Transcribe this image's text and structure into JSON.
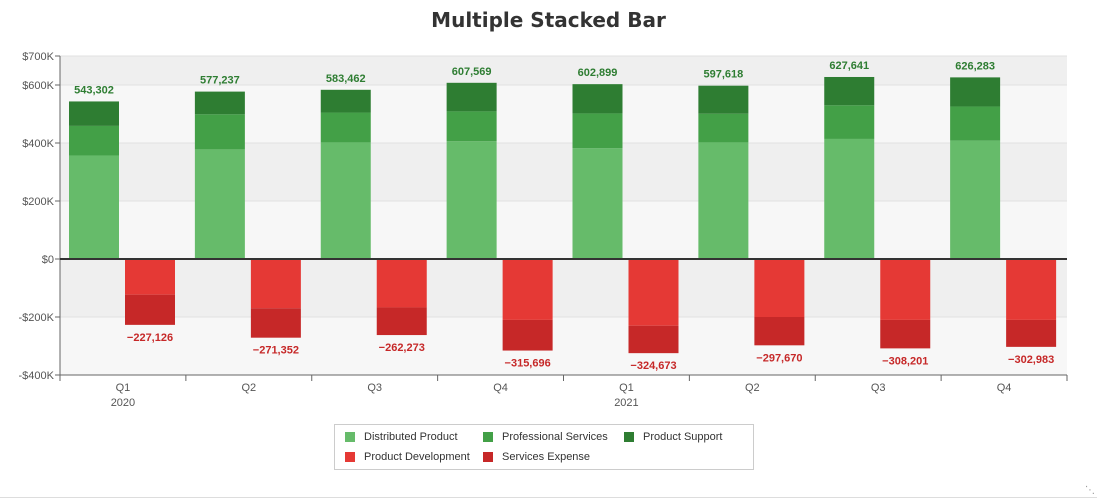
{
  "chart_data": {
    "type": "bar",
    "stacked": true,
    "title": "Multiple Stacked Bar",
    "xlabel": "",
    "ylabel": "",
    "ylim": [
      -400000,
      700000
    ],
    "y_ticks": [
      {
        "value": 700000,
        "label": "$700K"
      },
      {
        "value": 600000,
        "label": "$600K"
      },
      {
        "value": 400000,
        "label": "$400K"
      },
      {
        "value": 200000,
        "label": "$200K"
      },
      {
        "value": 0,
        "label": "$0"
      },
      {
        "value": -200000,
        "label": "-$200K"
      },
      {
        "value": -400000,
        "label": "-$400K"
      }
    ],
    "categories": [
      {
        "quarter": "Q1",
        "year": "2020"
      },
      {
        "quarter": "Q2",
        "year": ""
      },
      {
        "quarter": "Q3",
        "year": ""
      },
      {
        "quarter": "Q4",
        "year": ""
      },
      {
        "quarter": "Q1",
        "year": "2021"
      },
      {
        "quarter": "Q2",
        "year": ""
      },
      {
        "quarter": "Q3",
        "year": ""
      },
      {
        "quarter": "Q4",
        "year": ""
      }
    ],
    "stacks": [
      {
        "stack": "revenue",
        "series": [
          {
            "name": "Distributed Product",
            "color": "#66bb6a",
            "values": [
              357000,
              378000,
              402000,
              406000,
              382000,
              402000,
              414000,
              408000
            ]
          },
          {
            "name": "Professional Services",
            "color": "#43a047",
            "values": [
              102000,
              121000,
              103000,
              103000,
              120000,
              99000,
              116000,
              118000
            ]
          },
          {
            "name": "Product Support",
            "color": "#2e7d32",
            "values": [
              84302,
              78237,
              78462,
              98569,
              100899,
              96618,
              97641,
              100283
            ]
          }
        ],
        "totals": [
          543302,
          577237,
          583462,
          607569,
          602899,
          597618,
          627641,
          626283
        ],
        "total_labels": [
          "543,302",
          "577,237",
          "583,462",
          "607,569",
          "602,899",
          "597,618",
          "627,641",
          "626,283"
        ],
        "label_color": "#2e7d32"
      },
      {
        "stack": "expense",
        "series": [
          {
            "name": "Product Development",
            "color": "#e53935",
            "values": [
              -123000,
              -170000,
              -167000,
              -210000,
              -230000,
              -200000,
              -210000,
              -210000
            ]
          },
          {
            "name": "Services Expense",
            "color": "#c62828",
            "values": [
              -104126,
              -101352,
              -95273,
              -105696,
              -94673,
              -97670,
              -98201,
              -92983
            ]
          }
        ],
        "totals": [
          -227126,
          -271352,
          -262273,
          -315696,
          -324673,
          -297670,
          -308201,
          -302983
        ],
        "total_labels": [
          "−227,126",
          "−271,352",
          "−262,273",
          "−315,696",
          "−324,673",
          "−297,670",
          "−308,201",
          "−302,983"
        ],
        "label_color": "#c62828"
      }
    ],
    "legend": {
      "placement": "bottom-center",
      "items": [
        {
          "name": "Distributed Product",
          "color": "#66bb6a"
        },
        {
          "name": "Professional Services",
          "color": "#43a047"
        },
        {
          "name": "Product Support",
          "color": "#2e7d32"
        },
        {
          "name": "Product Development",
          "color": "#e53935"
        },
        {
          "name": "Services Expense",
          "color": "#c62828"
        }
      ]
    },
    "grid": true,
    "band_colors": [
      "#efefef",
      "#f7f7f7"
    ]
  }
}
